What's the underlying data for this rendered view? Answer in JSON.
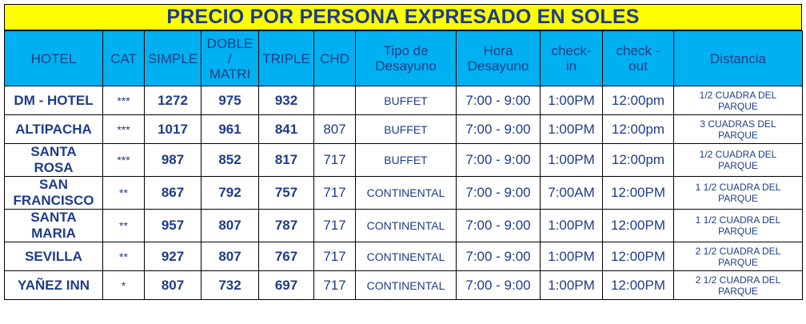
{
  "title": "PRECIO POR PERSONA EXPRESADO EN SOLES",
  "headers": {
    "hotel": "HOTEL",
    "cat": "CAT",
    "simple": "SIMPLE",
    "doble_1": "DOBLE",
    "doble_2": "/",
    "doble_3": "MATRI",
    "triple": "TRIPLE",
    "chd": "CHD",
    "tipo_1": "Tipo de",
    "tipo_2": "Desayuno",
    "hora_1": "Hora",
    "hora_2": "Desayuno",
    "checkin_1": "check-",
    "checkin_2": "in",
    "checkout_1": "check -",
    "checkout_2": "out",
    "distancia": "Distancia"
  },
  "rows": [
    {
      "hotel_1": "DM - HOTEL",
      "hotel_2": "",
      "cat": "***",
      "simple": "1272",
      "doble": "975",
      "triple": "932",
      "chd": "",
      "desayuno": "BUFFET",
      "hora": "7:00 - 9:00",
      "checkin": "1:00PM",
      "checkout": "12:00pm",
      "dist_1": "1/2 CUADRA DEL",
      "dist_2": "PARQUE"
    },
    {
      "hotel_1": "ALTIPACHA",
      "hotel_2": "",
      "cat": "***",
      "simple": "1017",
      "doble": "961",
      "triple": "841",
      "chd": "807",
      "desayuno": "BUFFET",
      "hora": "7:00 - 9:00",
      "checkin": "1:00PM",
      "checkout": "12:00pm",
      "dist_1": "3 CUADRAS DEL",
      "dist_2": "PARQUE"
    },
    {
      "hotel_1": "SANTA",
      "hotel_2": "ROSA",
      "cat": "***",
      "simple": "987",
      "doble": "852",
      "triple": "817",
      "chd": "717",
      "desayuno": "BUFFET",
      "hora": "7:00 - 9:00",
      "checkin": "1:00PM",
      "checkout": "12:00pm",
      "dist_1": "1/2 CUADRA DEL",
      "dist_2": "PARQUE"
    },
    {
      "hotel_1": "SAN",
      "hotel_2": "FRANCISCO",
      "cat": "**",
      "simple": "867",
      "doble": "792",
      "triple": "757",
      "chd": "717",
      "desayuno": "CONTINENTAL",
      "hora": "7:00 - 9:00",
      "checkin": "7:00AM",
      "checkout": "12:00PM",
      "dist_1": "1 1/2 CUADRA DEL",
      "dist_2": "PARQUE"
    },
    {
      "hotel_1": "SANTA",
      "hotel_2": "MARIA",
      "cat": "**",
      "simple": "957",
      "doble": "807",
      "triple": "787",
      "chd": "717",
      "desayuno": "CONTINENTAL",
      "hora": "7:00 - 9:00",
      "checkin": "1:00PM",
      "checkout": "12:00PM",
      "dist_1": "1 1/2 CUADRA DEL",
      "dist_2": "PARQUE"
    },
    {
      "hotel_1": "SEVILLA",
      "hotel_2": "",
      "cat": "**",
      "simple": "927",
      "doble": "807",
      "triple": "767",
      "chd": "717",
      "desayuno": "CONTINENTAL",
      "hora": "7:00 - 9:00",
      "checkin": "1:00PM",
      "checkout": "12:00PM",
      "dist_1": "2 1/2 CUADRA DEL",
      "dist_2": "PARQUE"
    },
    {
      "hotel_1": "YAÑEZ INN",
      "hotel_2": "",
      "cat": "*",
      "simple": "807",
      "doble": "732",
      "triple": "697",
      "chd": "717",
      "desayuno": "CONTINENTAL",
      "hora": "7:00 - 9:00",
      "checkin": "1:00PM",
      "checkout": "12:00PM",
      "dist_1": "2 1/2 CUADRA DEL",
      "dist_2": "PARQUE"
    }
  ],
  "colors": {
    "title_bg": "#ffff00",
    "header_bg": "#00b0f0",
    "text": "#1f3c88"
  }
}
